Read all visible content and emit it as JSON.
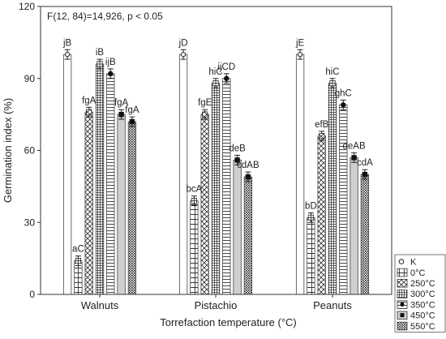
{
  "chart_data": {
    "type": "bar",
    "annotation": "F(12, 84)=14,926, p < 0.05",
    "xlabel": "Torrefaction temperature (°C)",
    "ylabel": "Germination index (%)",
    "ylim": [
      0,
      120
    ],
    "yticks": [
      0,
      30,
      60,
      90,
      120
    ],
    "grid": false,
    "legend_position": "bottom-right",
    "categories": [
      "Walnuts",
      "Pistachio",
      "Peanuts"
    ],
    "series": [
      {
        "name": "K",
        "pattern": "blank",
        "values": [
          100,
          100,
          100
        ],
        "errors": [
          2,
          2,
          2
        ],
        "labels": [
          "jB",
          "jD",
          "jE"
        ]
      },
      {
        "name": "0°C",
        "pattern": "grid",
        "values": [
          14,
          39,
          32
        ],
        "errors": [
          2,
          2,
          2
        ],
        "labels": [
          "aC",
          "bcA",
          "bD"
        ]
      },
      {
        "name": "250°C",
        "pattern": "crosshatch",
        "values": [
          76,
          75,
          66
        ],
        "errors": [
          2,
          2,
          2
        ],
        "labels": [
          "fgA",
          "fgE",
          "efB"
        ]
      },
      {
        "name": "300°C",
        "pattern": "fine-grid",
        "values": [
          96,
          88,
          88
        ],
        "errors": [
          2,
          2,
          2
        ],
        "labels": [
          "iB",
          "hiC",
          "hiC"
        ]
      },
      {
        "name": "350°C",
        "pattern": "lines",
        "values": [
          92,
          90,
          79
        ],
        "errors": [
          2,
          2,
          2
        ],
        "labels": [
          "ijB",
          "ijCD",
          "ghC"
        ]
      },
      {
        "name": "450°C",
        "pattern": "gray",
        "values": [
          75,
          56,
          57
        ],
        "errors": [
          2,
          2,
          2
        ],
        "labels": [
          "fgA",
          "deB",
          "deAB"
        ]
      },
      {
        "name": "550°C",
        "pattern": "dots",
        "values": [
          72,
          49,
          50
        ],
        "errors": [
          2,
          2,
          2
        ],
        "labels": [
          "fgA",
          "cdAB",
          "cdA"
        ]
      }
    ]
  }
}
